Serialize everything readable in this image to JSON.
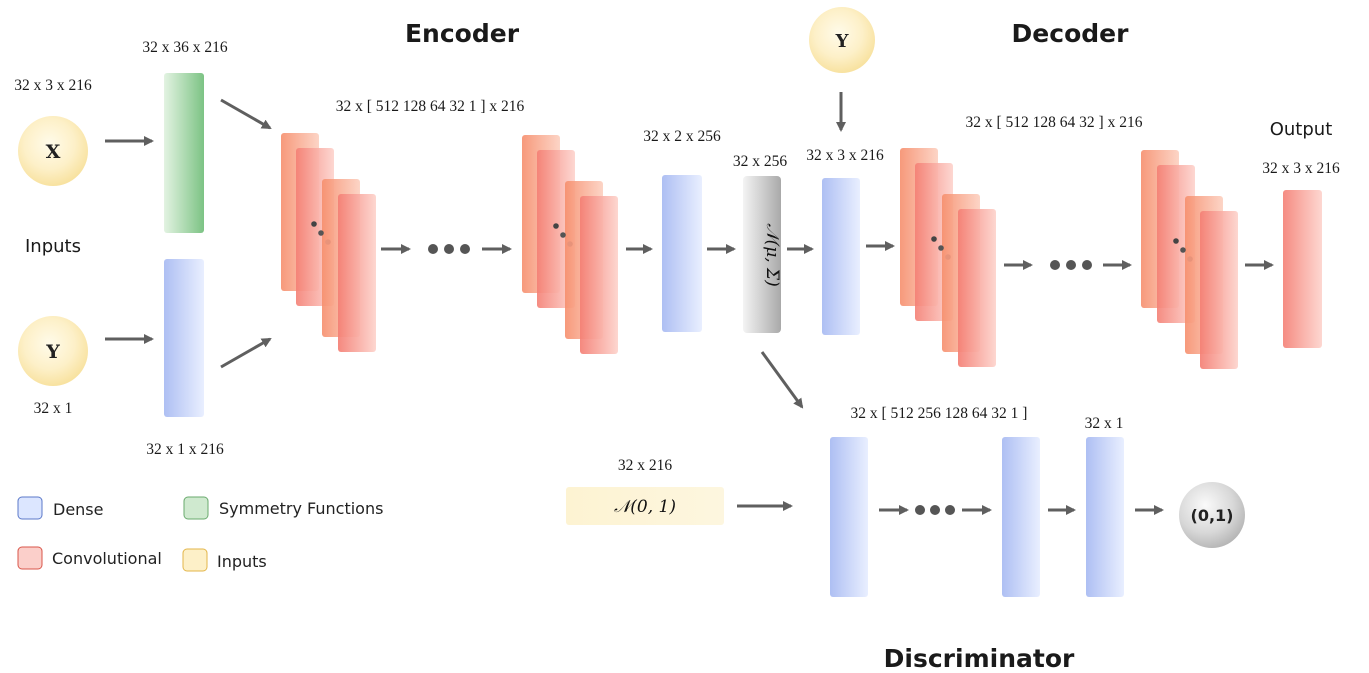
{
  "titles": {
    "encoder": "Encoder",
    "decoder": "Decoder",
    "discriminator": "Discriminator"
  },
  "inputs": {
    "label": "Inputs",
    "x_node": "X",
    "y_node": "Y",
    "x_dim": "32 x 3 x 216",
    "y_dim": "32 x 1"
  },
  "encoder": {
    "sym_dim": "32 x 36 x 216",
    "dense_dim": "32 x 1 x 216",
    "conv_dims": "32 x  [ 512  128  64  32  1 ]  x 216",
    "dense_out_dim": "32 x 2 x 256"
  },
  "latent": {
    "dim": "32 x 256",
    "dist": "𝒩(μ, Σ)"
  },
  "decoder": {
    "y_node": "Y",
    "input_dim": "32 x 3 x 216",
    "conv_dims": "32 x [ 512  128  64  32 ] x 216",
    "output_label": "Output",
    "output_dim": "32 x 3 x 216"
  },
  "discriminator": {
    "prior_dim": "32 x 216",
    "prior": "𝒩(0, 1)",
    "dense_dims": "32 x [ 512  256  128  64  32  1 ]",
    "out_dim": "32 x 1",
    "output": "(0,1)"
  },
  "legend": {
    "dense": "Dense",
    "symmetry": "Symmetry Functions",
    "conv": "Convolutional",
    "inputs": "Inputs"
  },
  "colors": {
    "dense": "#b8c9f5",
    "symmetry": "#8fcc95",
    "conv": "#f7938a",
    "inputs": "#fde9a6",
    "arrow": "#5f5f5f"
  }
}
